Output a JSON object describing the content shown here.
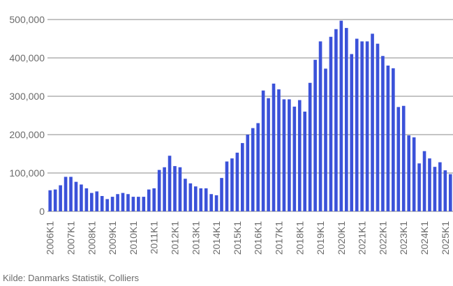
{
  "chart_data": {
    "type": "bar",
    "title": "",
    "xlabel": "",
    "ylabel": "",
    "ylim": [
      0,
      500000
    ],
    "grid": true,
    "y_ticks": [
      {
        "value": 0,
        "label": "0"
      },
      {
        "value": 100000,
        "label": "100,000"
      },
      {
        "value": 200000,
        "label": "200,000"
      },
      {
        "value": 300000,
        "label": "300,000"
      },
      {
        "value": 400000,
        "label": "400,000"
      },
      {
        "value": 500000,
        "label": "500,000"
      }
    ],
    "x_tick_labels": [
      "2006K1",
      "2007K1",
      "2008K1",
      "2009K1",
      "2010K1",
      "2011K1",
      "2012K1",
      "2013K1",
      "2014K1",
      "2015K1",
      "2016K1",
      "2017K1",
      "2018K1",
      "2019K1",
      "2020K1",
      "2021K1",
      "2022K1",
      "2023K1",
      "2024K1",
      "2025K1"
    ],
    "categories": [
      "2006K1",
      "2006K2",
      "2006K3",
      "2006K4",
      "2007K1",
      "2007K2",
      "2007K3",
      "2007K4",
      "2008K1",
      "2008K2",
      "2008K3",
      "2008K4",
      "2009K1",
      "2009K2",
      "2009K3",
      "2009K4",
      "2010K1",
      "2010K2",
      "2010K3",
      "2010K4",
      "2011K1",
      "2011K2",
      "2011K3",
      "2011K4",
      "2012K1",
      "2012K2",
      "2012K3",
      "2012K4",
      "2013K1",
      "2013K2",
      "2013K3",
      "2013K4",
      "2014K1",
      "2014K2",
      "2014K3",
      "2014K4",
      "2015K1",
      "2015K2",
      "2015K3",
      "2015K4",
      "2016K1",
      "2016K2",
      "2016K3",
      "2016K4",
      "2017K1",
      "2017K2",
      "2017K3",
      "2017K4",
      "2018K1",
      "2018K2",
      "2018K3",
      "2018K4",
      "2019K1",
      "2019K2",
      "2019K3",
      "2019K4",
      "2020K1",
      "2020K2",
      "2020K3",
      "2020K4",
      "2021K1",
      "2021K2",
      "2021K3",
      "2021K4",
      "2022K1",
      "2022K2",
      "2022K3",
      "2022K4",
      "2023K1",
      "2023K2",
      "2023K3",
      "2023K4",
      "2024K1",
      "2024K2",
      "2024K3",
      "2024K4",
      "2025K1",
      "2025K2"
    ],
    "values": [
      55000,
      57000,
      68000,
      90000,
      90000,
      77000,
      70000,
      60000,
      48000,
      52000,
      40000,
      32000,
      38000,
      45000,
      48000,
      45000,
      38000,
      38000,
      38000,
      57000,
      60000,
      108000,
      115000,
      145000,
      118000,
      115000,
      85000,
      73000,
      65000,
      60000,
      60000,
      45000,
      42000,
      87000,
      130000,
      138000,
      153000,
      178000,
      200000,
      217000,
      230000,
      315000,
      295000,
      333000,
      318000,
      292000,
      292000,
      273000,
      290000,
      260000,
      335000,
      395000,
      443000,
      372000,
      455000,
      475000,
      497000,
      478000,
      410000,
      450000,
      443000,
      443000,
      463000,
      437000,
      405000,
      380000,
      373000,
      272000,
      275000,
      198000,
      193000,
      125000,
      157000,
      138000,
      116000,
      128000,
      107000,
      97000
    ],
    "bar_color": "#3b52d9",
    "grid_color": "#888888",
    "source_note": "Kilde: Danmarks Statistik, Colliers"
  }
}
